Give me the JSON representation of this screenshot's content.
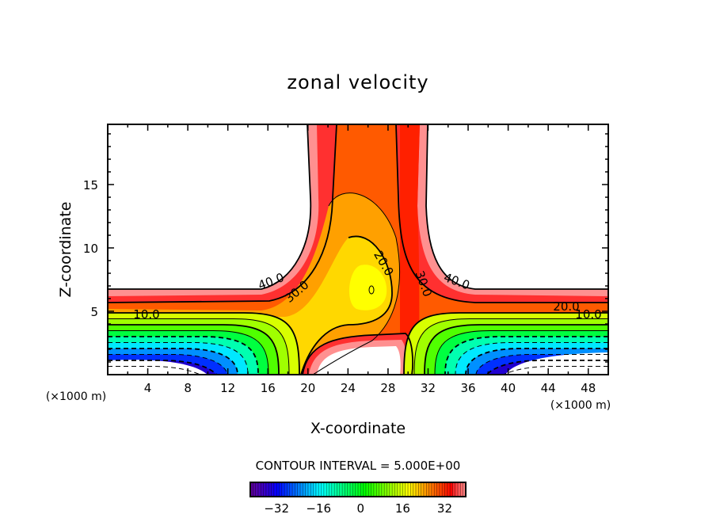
{
  "chart_data": {
    "type": "heatmap",
    "subtype": "filled-contour",
    "title": "zonal velocity",
    "xlabel": "X-coordinate",
    "ylabel": "Z-coordinate",
    "x_unit_left": "(×1000 m)",
    "x_unit_right": "(×1000 m)",
    "xlim": [
      0,
      50
    ],
    "ylim": [
      0,
      19.75
    ],
    "x_ticks": [
      4,
      8,
      12,
      16,
      20,
      24,
      28,
      32,
      36,
      40,
      44,
      48
    ],
    "y_ticks": [
      5,
      10,
      15
    ],
    "contour_interval_label": "CONTOUR INTERVAL = 5.000E+00",
    "contour_interval": 5.0,
    "contour_labels": [
      "40.0",
      "30.0",
      "20.0",
      "30.0",
      "40.0",
      "10.0",
      "20.0",
      "10.0",
      "0"
    ],
    "colorbar": {
      "range": [
        -42,
        40
      ],
      "ticks": [
        -32,
        -16,
        0,
        16,
        32
      ]
    },
    "description_values": {
      "max_region": "vertical jet x 18-32, plus horizontal band z 0-6.7, values up to ~45",
      "min_region": "negative lobes centered near x 9 and x 42 at z 0, values down to ~-42",
      "local_min_center": {
        "x": 26.3,
        "z": 6.8,
        "value": 10
      }
    }
  }
}
